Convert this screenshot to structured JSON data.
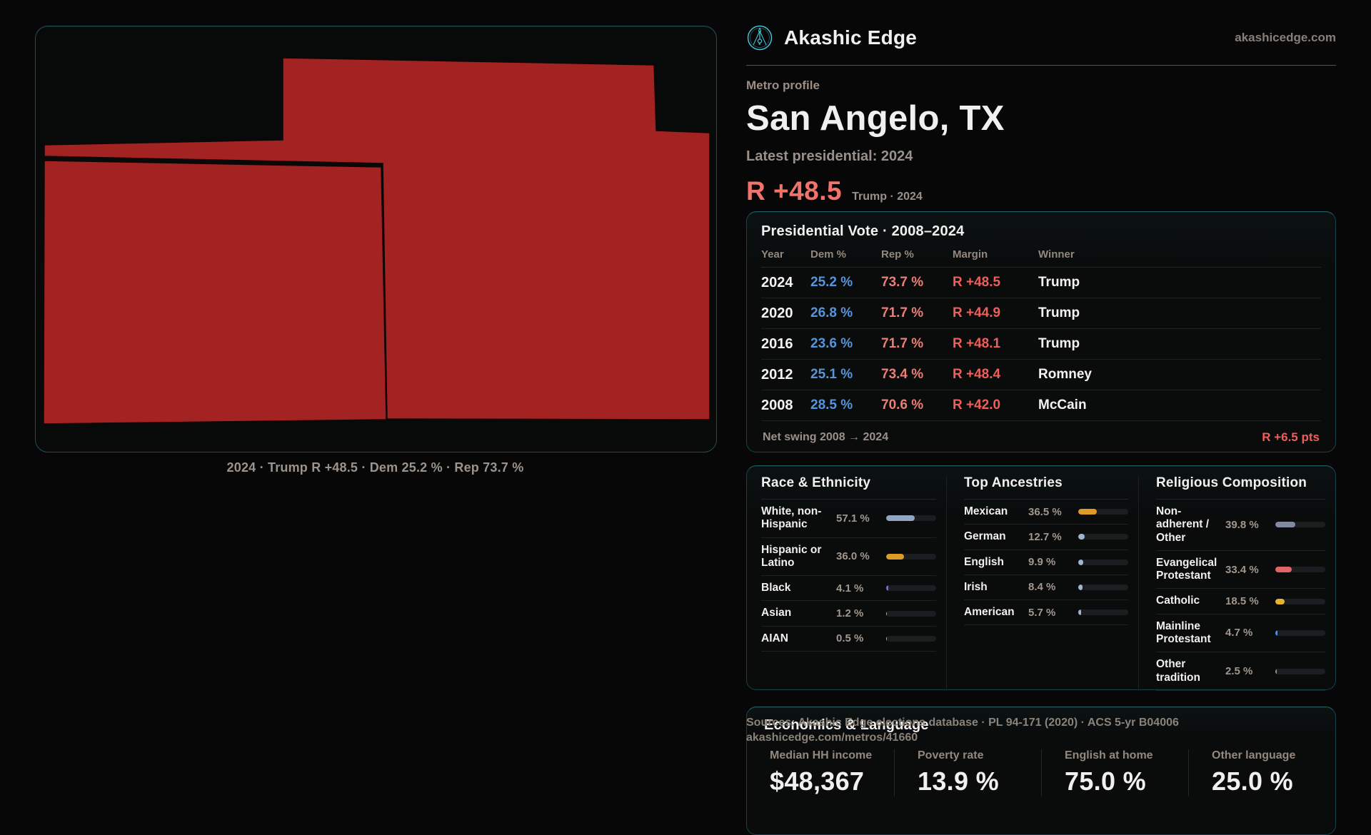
{
  "brand": {
    "name": "Akashic Edge",
    "domain": "akashicedge.com",
    "accent_color": "#46cadc"
  },
  "header": {
    "kicker": "Metro profile",
    "title": "San Angelo, TX",
    "subtitle": "Latest presidential: 2024",
    "headline_margin": "R +48.5",
    "headline_note": "Trump · 2024",
    "margin_color": "#f0736c"
  },
  "map": {
    "caption": "2024 · Trump R +48.5 · Dem 25.2 % · Rep 73.7 %",
    "fill_color": "#a32323",
    "border_color": "#1d4f57"
  },
  "vote": {
    "title": "Presidential Vote · 2008–2024",
    "columns": {
      "year": "Year",
      "dem": "Dem %",
      "rep": "Rep %",
      "margin": "Margin",
      "winner": "Winner"
    },
    "rows": [
      {
        "year": "2024",
        "dem": "25.2 %",
        "rep": "73.7 %",
        "margin": "R +48.5",
        "winner": "Trump"
      },
      {
        "year": "2020",
        "dem": "26.8 %",
        "rep": "71.7 %",
        "margin": "R +44.9",
        "winner": "Trump"
      },
      {
        "year": "2016",
        "dem": "23.6 %",
        "rep": "71.7 %",
        "margin": "R +48.1",
        "winner": "Trump"
      },
      {
        "year": "2012",
        "dem": "25.1 %",
        "rep": "73.4 %",
        "margin": "R +48.4",
        "winner": "Romney"
      },
      {
        "year": "2008",
        "dem": "28.5 %",
        "rep": "70.6 %",
        "margin": "R +42.0",
        "winner": "McCain"
      }
    ],
    "net_swing_label": "Net swing 2008 → 2024",
    "net_swing_value": "R +6.5 pts",
    "dem_color": "#5795db",
    "rep_color": "#ee7d76",
    "margin_color": "#ef5f5a"
  },
  "race": {
    "title": "Race & Ethnicity",
    "rows": [
      {
        "label": "White, non-Hispanic",
        "value": "57.1 %",
        "pct": 57.1,
        "color": "#93a6c1"
      },
      {
        "label": "Hispanic or Latino",
        "value": "36.0 %",
        "pct": 36.0,
        "color": "#dd9a28"
      },
      {
        "label": "Black",
        "value": "4.1 %",
        "pct": 4.1,
        "color": "#7b68e8"
      },
      {
        "label": "Asian",
        "value": "1.2 %",
        "pct": 1.2,
        "color": "#9fb6ce"
      },
      {
        "label": "AIAN",
        "value": "0.5 %",
        "pct": 0.5,
        "color": "#9fb6ce"
      }
    ]
  },
  "ancestries": {
    "title": "Top Ancestries",
    "rows": [
      {
        "label": "Mexican",
        "value": "36.5 %",
        "pct": 36.5,
        "color": "#dd9a28"
      },
      {
        "label": "German",
        "value": "12.7 %",
        "pct": 12.7,
        "color": "#9fb6ce"
      },
      {
        "label": "English",
        "value": "9.9 %",
        "pct": 9.9,
        "color": "#9fb6ce"
      },
      {
        "label": "Irish",
        "value": "8.4 %",
        "pct": 8.4,
        "color": "#9fb6ce"
      },
      {
        "label": "American",
        "value": "5.7 %",
        "pct": 5.7,
        "color": "#9fb6ce"
      }
    ]
  },
  "religion": {
    "title": "Religious Composition",
    "rows": [
      {
        "label": "Non-adherent / Other",
        "value": "39.8 %",
        "pct": 39.8,
        "color": "#7e8ba1"
      },
      {
        "label": "Evangelical Protestant",
        "value": "33.4 %",
        "pct": 33.4,
        "color": "#e06568"
      },
      {
        "label": "Catholic",
        "value": "18.5 %",
        "pct": 18.5,
        "color": "#e3b42c"
      },
      {
        "label": "Mainline Protestant",
        "value": "4.7 %",
        "pct": 4.7,
        "color": "#4d8fe0"
      },
      {
        "label": "Other tradition",
        "value": "2.5 %",
        "pct": 2.5,
        "color": "#8e9299"
      }
    ]
  },
  "economics": {
    "title": "Economics & Language",
    "stats": [
      {
        "label": "Median HH income",
        "value": "$48,367"
      },
      {
        "label": "Poverty rate",
        "value": "13.9 %"
      },
      {
        "label": "English at home",
        "value": "75.0 %"
      },
      {
        "label": "Other language",
        "value": "25.0 %"
      }
    ]
  },
  "sources": {
    "line1": "Sources: Akashic Edge elections database · PL 94-171 (2020) · ACS 5-yr B04006",
    "line2": "akashicedge.com/metros/41660"
  }
}
